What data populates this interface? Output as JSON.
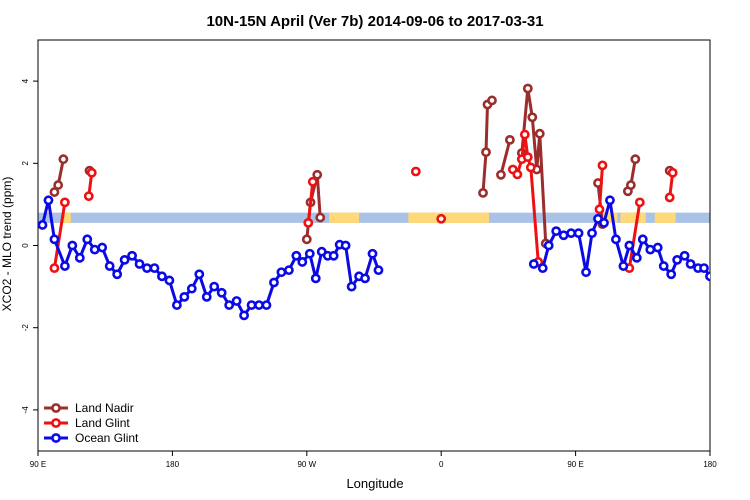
{
  "chart_data": {
    "type": "line",
    "title": "10N-15N April (Ver 7b)   2014-09-06 to 2017-03-31",
    "xlabel": "Longitude",
    "ylabel": "XCO2 - MLO trend (ppm)",
    "xlim": [
      90,
      540
    ],
    "ylim": [
      -5,
      5
    ],
    "x_ticks": [
      {
        "value": 90,
        "label": "90 E"
      },
      {
        "value": 180,
        "label": "180"
      },
      {
        "value": 270,
        "label": "90 W"
      },
      {
        "value": 360,
        "label": "0"
      },
      {
        "value": 450,
        "label": "90 E"
      },
      {
        "value": 540,
        "label": "180"
      }
    ],
    "y_ticks": [
      -4,
      -2,
      0,
      2,
      4
    ],
    "grid": false,
    "legend": {
      "placement": "bottom-left"
    },
    "band": {
      "y_min": 0.55,
      "y_max": 0.8,
      "color": "#a9c2e6"
    },
    "land_mask": {
      "color": "#ffd978",
      "y_min": 0.55,
      "y_max": 0.8,
      "segments": [
        [
          107,
          112
        ],
        [
          285,
          305
        ],
        [
          338,
          392
        ],
        [
          466,
          478
        ],
        [
          480,
          497
        ],
        [
          503,
          517
        ]
      ]
    },
    "series": [
      {
        "name": "Land Nadir",
        "color": "#9b2d2d",
        "segments": [
          [
            [
              101,
              1.3
            ],
            [
              103.5,
              1.47
            ],
            [
              107,
              2.1
            ]
          ],
          [
            [
              124.5,
              1.82
            ]
          ],
          [
            [
              270,
              0.15
            ],
            [
              272.5,
              1.05
            ],
            [
              277,
              1.72
            ],
            [
              279,
              0.68
            ]
          ],
          [
            [
              388,
              1.28
            ],
            [
              390,
              2.27
            ],
            [
              391,
              3.43
            ],
            [
              394,
              3.53
            ]
          ],
          [
            [
              400,
              1.72
            ],
            [
              406,
              2.57
            ]
          ],
          [
            [
              414,
              2.25
            ],
            [
              418,
              3.82
            ],
            [
              421,
              3.12
            ],
            [
              424,
              1.85
            ],
            [
              426,
              2.72
            ],
            [
              430,
              0.05
            ]
          ],
          [
            [
              465,
              1.52
            ],
            [
              468,
              0.52
            ]
          ],
          [
            [
              485,
              1.32
            ],
            [
              487,
              1.47
            ],
            [
              490,
              2.1
            ]
          ],
          [
            [
              513,
              1.82
            ]
          ]
        ]
      },
      {
        "name": "Land Glint",
        "color": "#ee1111",
        "segments": [
          [
            [
              101,
              -0.55
            ],
            [
              108,
              1.05
            ]
          ],
          [
            [
              124,
              1.2
            ],
            [
              126,
              1.77
            ]
          ],
          [
            [
              271,
              0.55
            ],
            [
              274,
              1.55
            ]
          ],
          [
            [
              343,
              1.8
            ]
          ],
          [
            [
              360,
              0.65
            ]
          ],
          [
            [
              408,
              1.85
            ],
            [
              411,
              1.73
            ],
            [
              414,
              2.1
            ],
            [
              416,
              2.7
            ],
            [
              418,
              2.15
            ],
            [
              420,
              1.9
            ],
            [
              425,
              -0.4
            ]
          ],
          [
            [
              466,
              0.88
            ],
            [
              468,
              1.95
            ]
          ],
          [
            [
              486,
              -0.55
            ],
            [
              493,
              1.05
            ]
          ],
          [
            [
              513,
              1.17
            ],
            [
              515,
              1.77
            ]
          ]
        ]
      },
      {
        "name": "Ocean Glint",
        "color": "#0a0ae6",
        "segments": [
          [
            [
              93,
              0.5
            ],
            [
              97,
              1.1
            ],
            [
              101,
              0.15
            ],
            [
              108,
              -0.5
            ],
            [
              113,
              0.0
            ],
            [
              118,
              -0.3
            ],
            [
              123,
              0.15
            ],
            [
              128,
              -0.1
            ],
            [
              133,
              -0.05
            ],
            [
              138,
              -0.5
            ],
            [
              143,
              -0.7
            ],
            [
              148,
              -0.35
            ],
            [
              153,
              -0.25
            ],
            [
              158,
              -0.45
            ],
            [
              163,
              -0.55
            ],
            [
              168,
              -0.55
            ],
            [
              173,
              -0.75
            ],
            [
              178,
              -0.85
            ],
            [
              183,
              -1.45
            ],
            [
              188,
              -1.25
            ],
            [
              193,
              -1.05
            ],
            [
              198,
              -0.7
            ],
            [
              203,
              -1.25
            ],
            [
              208,
              -1.0
            ],
            [
              213,
              -1.15
            ],
            [
              218,
              -1.45
            ],
            [
              223,
              -1.35
            ],
            [
              228,
              -1.7
            ],
            [
              233,
              -1.45
            ],
            [
              238,
              -1.45
            ],
            [
              243,
              -1.45
            ],
            [
              248,
              -0.9
            ],
            [
              253,
              -0.65
            ],
            [
              258,
              -0.6
            ],
            [
              263,
              -0.25
            ],
            [
              267,
              -0.4
            ],
            [
              272,
              -0.2
            ],
            [
              276,
              -0.8
            ],
            [
              280,
              -0.15
            ],
            [
              284,
              -0.25
            ],
            [
              288,
              -0.25
            ],
            [
              292,
              0.02
            ],
            [
              296,
              -0.0
            ],
            [
              300,
              -1.0
            ],
            [
              305,
              -0.75
            ],
            [
              309,
              -0.8
            ],
            [
              314,
              -0.2
            ],
            [
              318,
              -0.6
            ]
          ],
          [
            [
              422,
              -0.45
            ]
          ],
          [
            [
              428,
              -0.55
            ],
            [
              432,
              -0.0
            ],
            [
              437,
              0.35
            ],
            [
              442,
              0.25
            ],
            [
              447,
              0.3
            ],
            [
              452,
              0.3
            ],
            [
              457,
              -0.65
            ],
            [
              461,
              0.3
            ],
            [
              465,
              0.65
            ],
            [
              469,
              0.55
            ],
            [
              473,
              1.1
            ],
            [
              477,
              0.15
            ],
            [
              482,
              -0.5
            ],
            [
              486,
              0.0
            ],
            [
              491,
              -0.3
            ],
            [
              495,
              0.15
            ],
            [
              500,
              -0.1
            ],
            [
              505,
              -0.05
            ],
            [
              509,
              -0.5
            ],
            [
              514,
              -0.7
            ],
            [
              518,
              -0.35
            ],
            [
              523,
              -0.25
            ],
            [
              527,
              -0.45
            ],
            [
              532,
              -0.55
            ],
            [
              536,
              -0.55
            ],
            [
              540,
              -0.75
            ],
            [
              544,
              -0.85
            ]
          ]
        ]
      }
    ]
  }
}
